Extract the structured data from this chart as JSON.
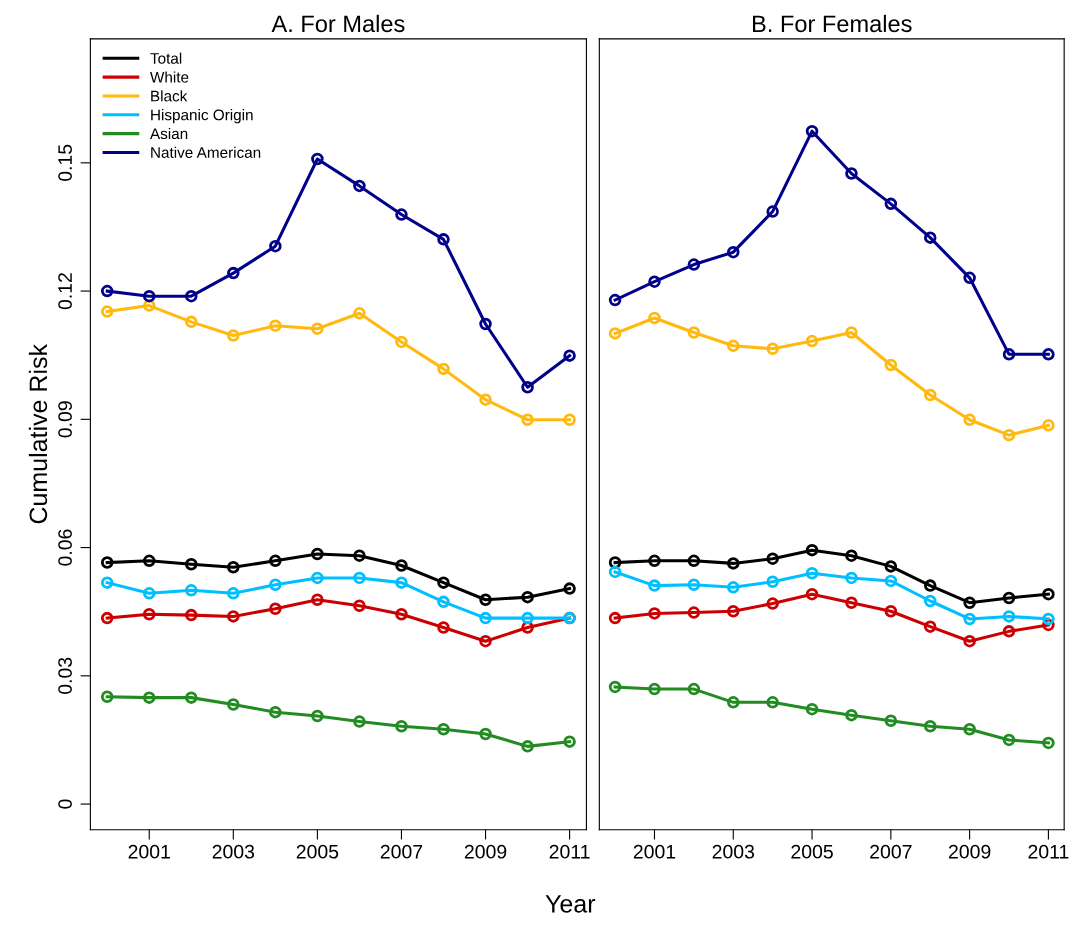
{
  "chart_data": [
    {
      "type": "line",
      "title": "A. For Males",
      "xlabel": "Year",
      "ylabel": "Cumulative Risk",
      "x": [
        2000,
        2001,
        2002,
        2003,
        2004,
        2005,
        2006,
        2007,
        2008,
        2009,
        2010,
        2011
      ],
      "xlim": [
        1999.6,
        2011.4
      ],
      "xticks": [
        2001,
        2003,
        2005,
        2007,
        2009,
        2011
      ],
      "ylim": [
        -0.006,
        0.179
      ],
      "yticks": [
        {
          "value": 0,
          "label": "0"
        },
        0.03,
        0.06,
        0.09,
        0.12,
        0.15
      ],
      "marker": "circle",
      "legend": "top left",
      "grid": false,
      "series": [
        {
          "name": "Total",
          "color": "#000000",
          "values": [
            0.0565,
            0.0569,
            0.0561,
            0.0554,
            0.0569,
            0.0585,
            0.0581,
            0.0558,
            0.0518,
            0.0478,
            0.0484,
            0.0504
          ]
        },
        {
          "name": "White",
          "color": "#cc0000",
          "values": [
            0.0435,
            0.0444,
            0.0442,
            0.0439,
            0.0457,
            0.0478,
            0.0464,
            0.0444,
            0.0413,
            0.0381,
            0.0413,
            0.0435
          ]
        },
        {
          "name": "Black",
          "color": "#ffb90f",
          "values": [
            0.1152,
            0.1166,
            0.1128,
            0.1096,
            0.1119,
            0.1112,
            0.1148,
            0.1081,
            0.1018,
            0.0946,
            0.0899,
            0.0899
          ]
        },
        {
          "name": "Hispanic Origin",
          "color": "#00bfff",
          "values": [
            0.0518,
            0.0493,
            0.05,
            0.0493,
            0.0513,
            0.0529,
            0.0529,
            0.0518,
            0.0473,
            0.0435,
            0.0435,
            0.0435
          ]
        },
        {
          "name": "Asian",
          "color": "#228b22",
          "values": [
            0.0251,
            0.0249,
            0.0249,
            0.0233,
            0.0215,
            0.0206,
            0.0193,
            0.0182,
            0.0175,
            0.0164,
            0.0135,
            0.0146
          ]
        },
        {
          "name": "Native American",
          "color": "#00008b",
          "values": [
            0.12,
            0.1188,
            0.1188,
            0.1242,
            0.1305,
            0.1509,
            0.1446,
            0.1379,
            0.1321,
            0.1123,
            0.0975,
            0.1049
          ]
        }
      ]
    },
    {
      "type": "line",
      "title": "B. For Females",
      "x": [
        2000,
        2001,
        2002,
        2003,
        2004,
        2005,
        2006,
        2007,
        2008,
        2009,
        2010,
        2011
      ],
      "xlim": [
        1999.6,
        2011.4
      ],
      "xticks": [
        2001,
        2003,
        2005,
        2007,
        2009,
        2011
      ],
      "ylim": [
        -0.006,
        0.179
      ],
      "tick_labels": "x",
      "marker": "circle",
      "grid": false,
      "series": [
        {
          "color": "#000000",
          "values": [
            0.0565,
            0.0569,
            0.0569,
            0.0563,
            0.0574,
            0.0594,
            0.0581,
            0.0556,
            0.0511,
            0.0471,
            0.0482,
            0.0491
          ]
        },
        {
          "color": "#cc0000",
          "values": [
            0.0435,
            0.0446,
            0.0448,
            0.0451,
            0.0469,
            0.0491,
            0.0471,
            0.0451,
            0.0415,
            0.0381,
            0.0404,
            0.0419
          ]
        },
        {
          "color": "#ffb90f",
          "values": [
            0.1101,
            0.1137,
            0.1103,
            0.1072,
            0.1065,
            0.1083,
            0.1103,
            0.1027,
            0.0957,
            0.0899,
            0.0863,
            0.0886
          ]
        },
        {
          "color": "#00bfff",
          "values": [
            0.0543,
            0.0511,
            0.0513,
            0.0507,
            0.052,
            0.054,
            0.0529,
            0.0522,
            0.0475,
            0.0433,
            0.0439,
            0.0433
          ]
        },
        {
          "color": "#228b22",
          "values": [
            0.0274,
            0.0269,
            0.0269,
            0.0238,
            0.0238,
            0.0222,
            0.0208,
            0.0195,
            0.0182,
            0.0175,
            0.015,
            0.0143
          ]
        },
        {
          "color": "#00008b",
          "values": [
            0.1179,
            0.1222,
            0.1262,
            0.1291,
            0.1386,
            0.1574,
            0.1475,
            0.1404,
            0.1325,
            0.1231,
            0.1052,
            0.1052
          ]
        }
      ]
    }
  ]
}
